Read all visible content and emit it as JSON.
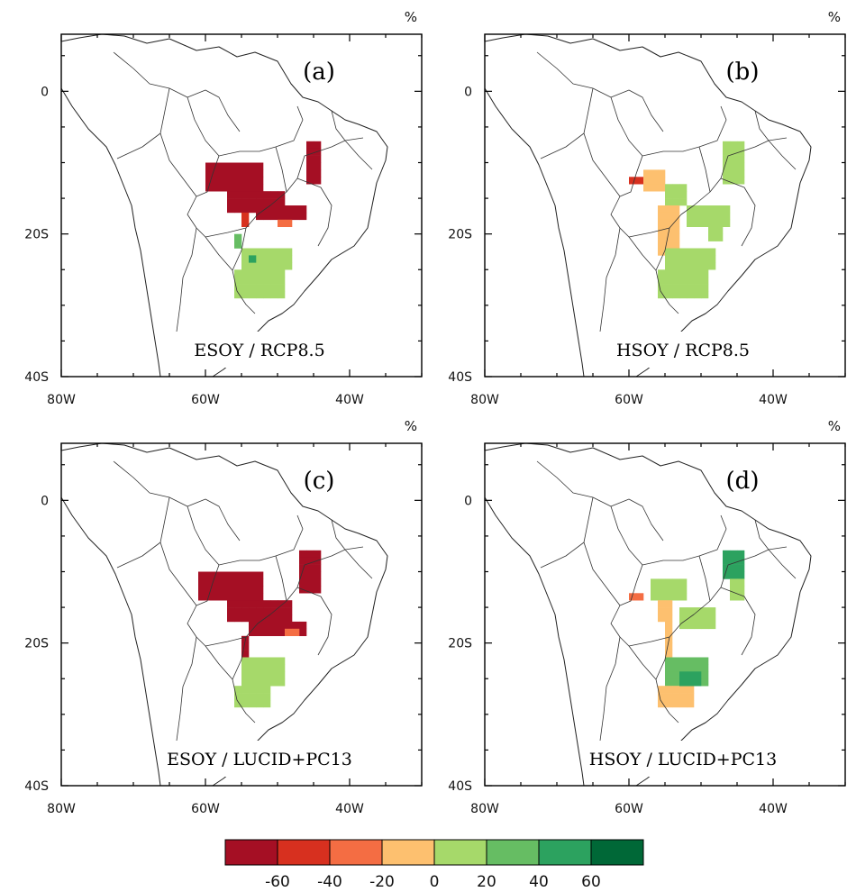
{
  "figure": {
    "unit": "%",
    "lat_ticks": [
      "0",
      "20S",
      "40S"
    ],
    "lon_ticks": [
      "80W",
      "60W",
      "40W"
    ]
  },
  "panels": [
    {
      "letter": "(a)",
      "caption": "ESOY / RCP8.5"
    },
    {
      "letter": "(b)",
      "caption": "HSOY / RCP8.5"
    },
    {
      "letter": "(c)",
      "caption": "ESOY / LUCID+PC13"
    },
    {
      "letter": "(d)",
      "caption": "HSOY / LUCID+PC13"
    }
  ],
  "colorbar": {
    "colors": [
      "#a50f24",
      "#d7301f",
      "#f46d43",
      "#fdc06f",
      "#a6d96a",
      "#66bd63",
      "#2ca25f",
      "#006837"
    ],
    "labels": [
      "-60",
      "-40",
      "-20",
      "0",
      "20",
      "40",
      "60"
    ]
  },
  "map_data": {
    "type": "gridded-choropleth",
    "lon_range": [
      -80,
      -30
    ],
    "lat_range": [
      -40,
      8
    ],
    "cell_deg": 1
  }
}
